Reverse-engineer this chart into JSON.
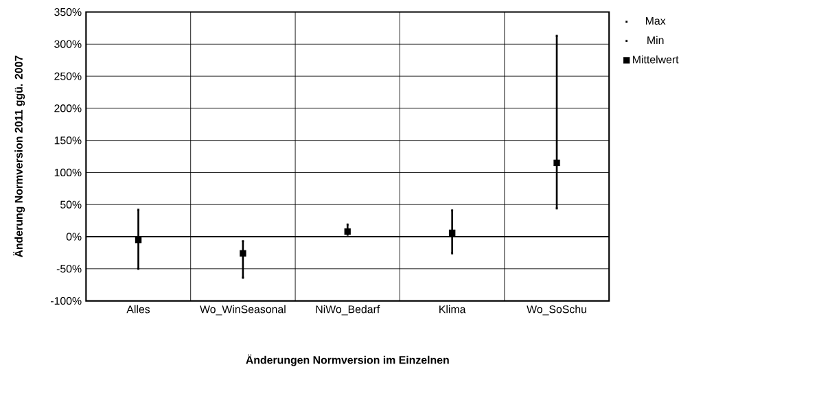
{
  "chart_data": {
    "type": "scatter",
    "xlabel": "Änderungen Normversion im Einzelnen",
    "ylabel": "Änderung Normversion 2011 ggü. 2007",
    "categories": [
      "Alles",
      "Wo_WinSeasonal",
      "NiWo_Bedarf",
      "Klima",
      "Wo_SoSchu"
    ],
    "series": [
      {
        "name": "Max",
        "color": "#000000",
        "marker": "square",
        "values": [
          42,
          -7,
          19,
          41,
          313
        ]
      },
      {
        "name": "Min",
        "color": "#000000",
        "marker": "square",
        "values": [
          -50,
          -64,
          3,
          -26,
          44
        ]
      },
      {
        "name": "Mittelwert",
        "color": "#000000",
        "marker": "square",
        "values": [
          -5,
          -26,
          8,
          6,
          115
        ]
      }
    ],
    "ylim": [
      -100,
      350
    ],
    "yticks": [
      {
        "value": -100,
        "label": "-100%"
      },
      {
        "value": -50,
        "label": "-50%"
      },
      {
        "value": 0,
        "label": "0%"
      },
      {
        "value": 50,
        "label": "50%"
      },
      {
        "value": 100,
        "label": "100%"
      },
      {
        "value": 150,
        "label": "150%"
      },
      {
        "value": 200,
        "label": "200%"
      },
      {
        "value": 250,
        "label": "250%"
      },
      {
        "value": 300,
        "label": "300%"
      },
      {
        "value": 350,
        "label": "350%"
      }
    ],
    "grid": true,
    "legend": "top right"
  }
}
